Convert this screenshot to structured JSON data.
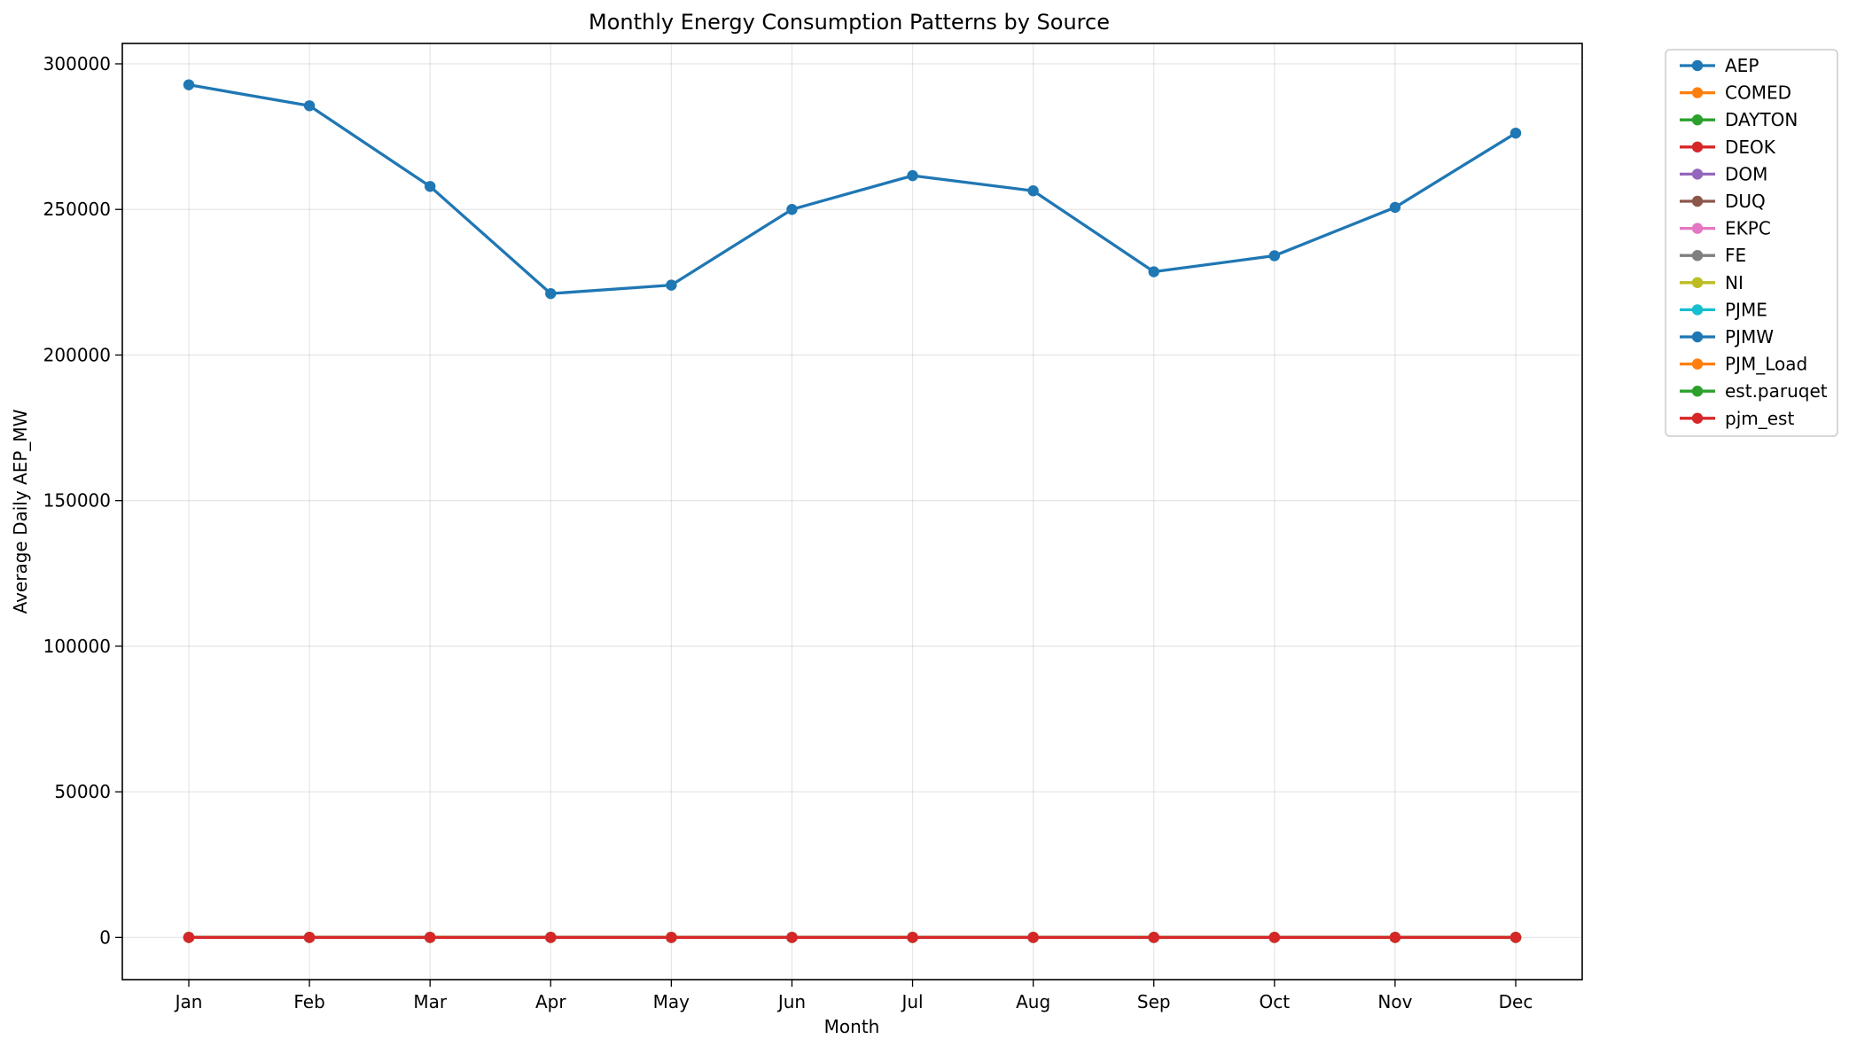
{
  "chart_data": {
    "type": "line",
    "title": "Monthly Energy Consumption Patterns by Source",
    "xlabel": "Month",
    "ylabel": "Average Daily AEP_MW",
    "categories": [
      "Jan",
      "Feb",
      "Mar",
      "Apr",
      "May",
      "Jun",
      "Jul",
      "Aug",
      "Sep",
      "Oct",
      "Nov",
      "Dec"
    ],
    "ylim": [
      -14500,
      307000
    ],
    "yticks": [
      "0",
      "50000",
      "100000",
      "150000",
      "200000",
      "250000",
      "300000"
    ],
    "grid": true,
    "legend_position": "outside-top-right",
    "series": [
      {
        "name": "AEP",
        "color": "#1f77b4",
        "values": [
          292800,
          285600,
          257900,
          221100,
          224000,
          250000,
          261600,
          256400,
          228600,
          234100,
          250700,
          276200
        ]
      },
      {
        "name": "COMED",
        "color": "#ff7f0e",
        "values": [
          0,
          0,
          0,
          0,
          0,
          0,
          0,
          0,
          0,
          0,
          0,
          0
        ]
      },
      {
        "name": "DAYTON",
        "color": "#2ca02c",
        "values": [
          0,
          0,
          0,
          0,
          0,
          0,
          0,
          0,
          0,
          0,
          0,
          0
        ]
      },
      {
        "name": "DEOK",
        "color": "#d62728",
        "values": [
          0,
          0,
          0,
          0,
          0,
          0,
          0,
          0,
          0,
          0,
          0,
          0
        ]
      },
      {
        "name": "DOM",
        "color": "#9467bd",
        "values": [
          0,
          0,
          0,
          0,
          0,
          0,
          0,
          0,
          0,
          0,
          0,
          0
        ]
      },
      {
        "name": "DUQ",
        "color": "#8c564b",
        "values": [
          0,
          0,
          0,
          0,
          0,
          0,
          0,
          0,
          0,
          0,
          0,
          0
        ]
      },
      {
        "name": "EKPC",
        "color": "#e377c2",
        "values": [
          0,
          0,
          0,
          0,
          0,
          0,
          0,
          0,
          0,
          0,
          0,
          0
        ]
      },
      {
        "name": "FE",
        "color": "#7f7f7f",
        "values": [
          0,
          0,
          0,
          0,
          0,
          0,
          0,
          0,
          0,
          0,
          0,
          0
        ]
      },
      {
        "name": "NI",
        "color": "#bcbd22",
        "values": [
          0,
          0,
          0,
          0,
          0,
          0,
          0,
          0,
          0,
          0,
          0,
          0
        ]
      },
      {
        "name": "PJME",
        "color": "#17becf",
        "values": [
          0,
          0,
          0,
          0,
          0,
          0,
          0,
          0,
          0,
          0,
          0,
          0
        ]
      },
      {
        "name": "PJMW",
        "color": "#1f77b4",
        "values": [
          0,
          0,
          0,
          0,
          0,
          0,
          0,
          0,
          0,
          0,
          0,
          0
        ]
      },
      {
        "name": "PJM_Load",
        "color": "#ff7f0e",
        "values": [
          0,
          0,
          0,
          0,
          0,
          0,
          0,
          0,
          0,
          0,
          0,
          0
        ]
      },
      {
        "name": "est.paruqet",
        "color": "#2ca02c",
        "values": [
          0,
          0,
          0,
          0,
          0,
          0,
          0,
          0,
          0,
          0,
          0,
          0
        ]
      },
      {
        "name": "pjm_est",
        "color": "#d62728",
        "values": [
          0,
          0,
          0,
          0,
          0,
          0,
          0,
          0,
          0,
          0,
          0,
          0
        ]
      }
    ]
  }
}
